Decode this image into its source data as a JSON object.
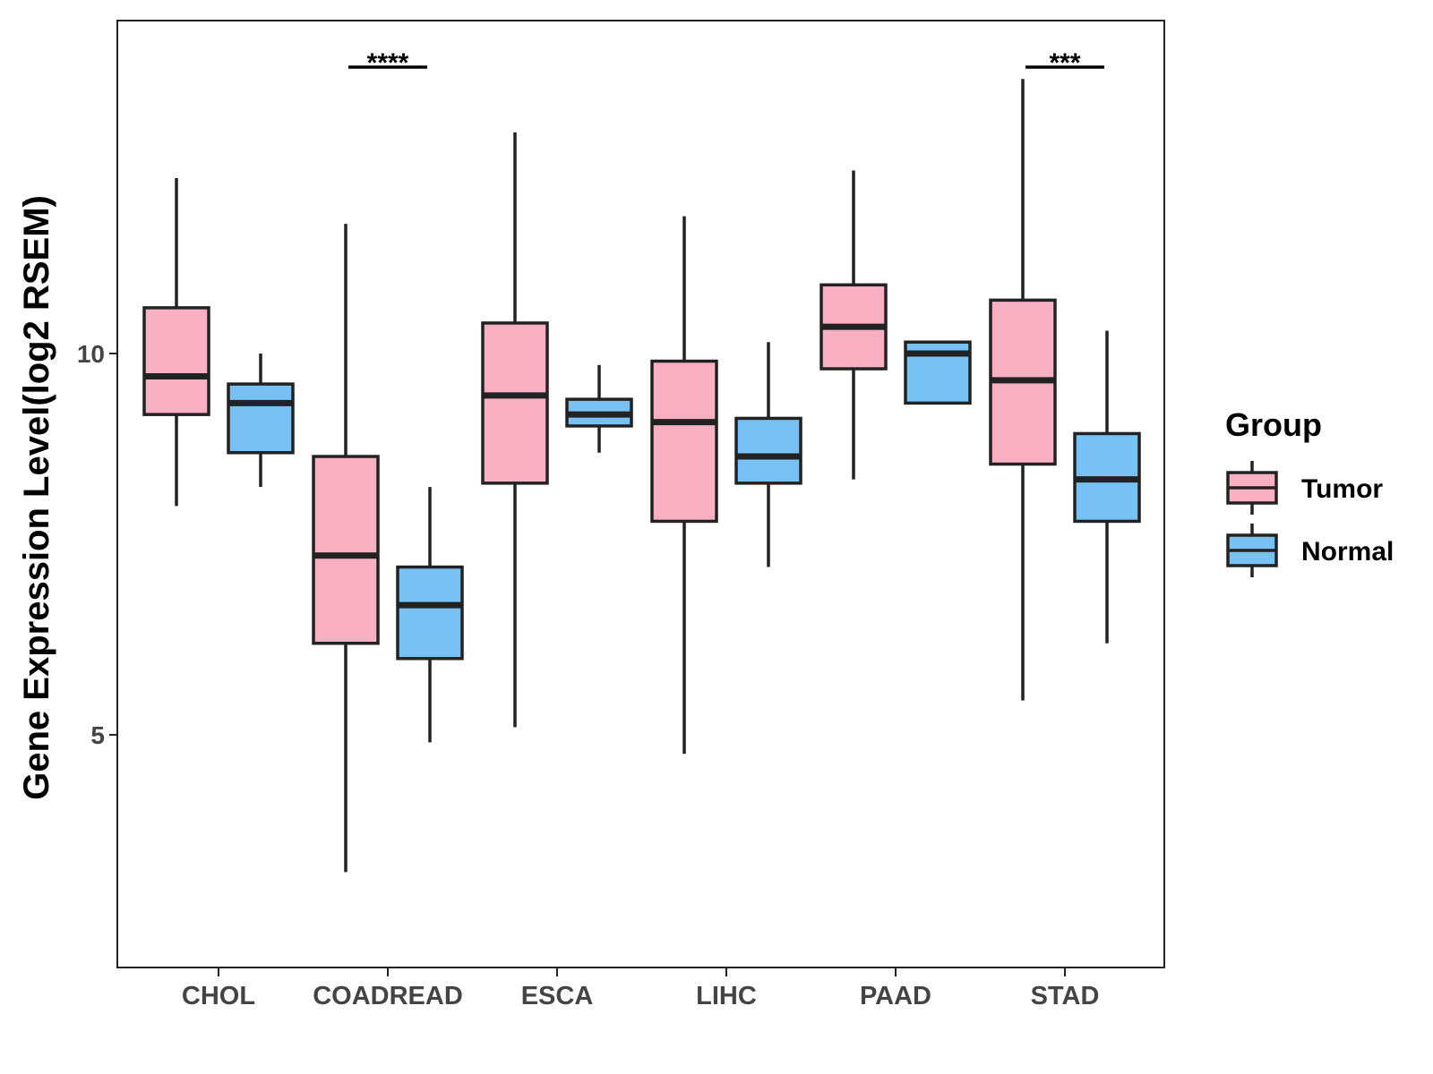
{
  "chart_data": {
    "type": "boxplot",
    "title": "",
    "xlabel": "",
    "ylabel": "Gene Expression Level(log2 RSEM)",
    "ylim": [
      2.0,
      14.5
    ],
    "yticks": [
      5,
      10
    ],
    "categories": [
      "CHOL",
      "COADREAD",
      "ESCA",
      "LIHC",
      "PAAD",
      "STAD"
    ],
    "legend": {
      "title": "Group",
      "position": "right"
    },
    "series": [
      {
        "name": "Tumor",
        "color": "#F9B0C3",
        "boxes": [
          {
            "whisker_low": 8.0,
            "q1": 9.2,
            "median": 9.7,
            "q3": 10.6,
            "whisker_high": 12.3
          },
          {
            "whisker_low": 3.2,
            "q1": 6.2,
            "median": 7.35,
            "q3": 8.65,
            "whisker_high": 11.7
          },
          {
            "whisker_low": 5.1,
            "q1": 8.3,
            "median": 9.45,
            "q3": 10.4,
            "whisker_high": 12.9
          },
          {
            "whisker_low": 4.75,
            "q1": 7.8,
            "median": 9.1,
            "q3": 9.9,
            "whisker_high": 11.8
          },
          {
            "whisker_low": 8.35,
            "q1": 9.8,
            "median": 10.35,
            "q3": 10.9,
            "whisker_high": 12.4
          },
          {
            "whisker_low": 5.45,
            "q1": 8.55,
            "median": 9.65,
            "q3": 10.7,
            "whisker_high": 13.6
          }
        ]
      },
      {
        "name": "Normal",
        "color": "#77C1F5",
        "boxes": [
          {
            "whisker_low": 8.25,
            "q1": 8.7,
            "median": 9.35,
            "q3": 9.6,
            "whisker_high": 10.0
          },
          {
            "whisker_low": 4.9,
            "q1": 6.0,
            "median": 6.7,
            "q3": 7.2,
            "whisker_high": 8.25
          },
          {
            "whisker_low": 8.7,
            "q1": 9.05,
            "median": 9.2,
            "q3": 9.4,
            "whisker_high": 9.85
          },
          {
            "whisker_low": 7.2,
            "q1": 8.3,
            "median": 8.65,
            "q3": 9.15,
            "whisker_high": 10.15
          },
          {
            "whisker_low": 9.35,
            "q1": 9.35,
            "median": 10.0,
            "q3": 10.15,
            "whisker_high": 10.15
          },
          {
            "whisker_low": 6.2,
            "q1": 7.8,
            "median": 8.35,
            "q3": 8.95,
            "whisker_high": 10.3
          }
        ]
      }
    ],
    "annotations": [
      {
        "category": "COADREAD",
        "text": "****"
      },
      {
        "category": "STAD",
        "text": "***"
      }
    ]
  }
}
